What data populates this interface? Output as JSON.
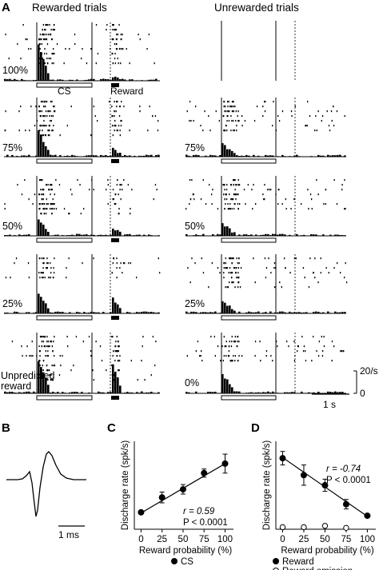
{
  "panel_a": {
    "letter": "A",
    "rewarded_title": "Rewarded trials",
    "unrewarded_title": "Unrewarded trials",
    "cs_label": "CS",
    "reward_label": "Reward",
    "rows": [
      {
        "rewarded_label": "100%",
        "unrewarded_label": ""
      },
      {
        "rewarded_label": "75%",
        "unrewarded_label": "75%"
      },
      {
        "rewarded_label": "50%",
        "unrewarded_label": "50%"
      },
      {
        "rewarded_label": "25%",
        "unrewarded_label": "25%"
      },
      {
        "rewarded_label": "Unpredicted",
        "rewarded_label2": "reward",
        "unrewarded_label": "0%"
      }
    ],
    "rate_scale_label": "20/s",
    "rate_scale_zero": "0",
    "time_scale_label": "1 s"
  },
  "panel_b": {
    "letter": "B",
    "scale_label": "1 ms"
  },
  "chart_data": [
    {
      "panel": "C",
      "type": "line",
      "x": [
        0,
        25,
        50,
        75,
        100
      ],
      "series": [
        {
          "name": "CS",
          "values": [
            2.5,
            4.7,
            5.9,
            8.3,
            9.7
          ],
          "errors": [
            0.2,
            0.8,
            0.7,
            0.6,
            1.4
          ],
          "marker": "filled-circle"
        }
      ],
      "fit_line": [
        [
          0,
          2.4
        ],
        [
          100,
          9.7
        ]
      ],
      "xlabel": "Reward probability (%)",
      "ylabel": "Discharge rate (spk/s)",
      "xticks": [
        "0",
        "25",
        "50",
        "75",
        "100"
      ],
      "xlim": [
        -8,
        110
      ],
      "ylim": [
        0,
        13
      ],
      "stat_r": "r = 0.59",
      "stat_p": "P < 0.0001",
      "legend": [
        {
          "label": "CS",
          "marker": "filled-circle"
        }
      ]
    },
    {
      "panel": "D",
      "type": "line",
      "x": [
        0,
        25,
        50,
        75,
        100
      ],
      "series": [
        {
          "name": "Reward",
          "values": [
            10.5,
            8.0,
            6.5,
            3.7,
            2.0
          ],
          "errors": [
            1.0,
            1.5,
            0.9,
            0.7,
            0.2
          ],
          "marker": "filled-circle"
        },
        {
          "name": "Reward omission",
          "values": [
            0.3,
            0.3,
            0.5,
            0.2,
            null
          ],
          "marker": "open-circle"
        }
      ],
      "fit_line": [
        [
          0,
          10.6
        ],
        [
          100,
          1.9
        ]
      ],
      "xlabel": "Reward probability (%)",
      "ylabel": "Discharge rate (spk/s)",
      "xticks": [
        "0",
        "25",
        "50",
        "75",
        "100"
      ],
      "xlim": [
        -8,
        110
      ],
      "ylim": [
        0,
        13
      ],
      "stat_r": "r = -0.74",
      "stat_p": "P < 0.0001",
      "legend": [
        {
          "label": "Reward",
          "marker": "filled-circle"
        },
        {
          "label": "Reward omission",
          "marker": "open-circle"
        }
      ]
    }
  ]
}
